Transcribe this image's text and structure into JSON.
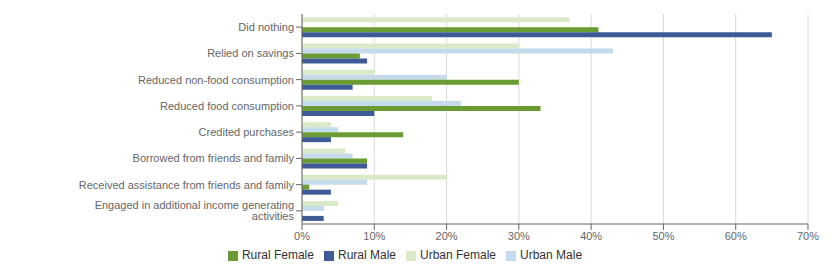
{
  "chart_data": {
    "type": "bar",
    "orientation": "horizontal",
    "categories": [
      "Did nothing",
      "Relied on savings",
      "Reduced non-food consumption",
      "Reduced food consumption",
      "Credited purchases",
      "Borrowed from friends and family",
      "Received assistance from friends and family",
      "Engaged in additional income generating activities"
    ],
    "series": [
      {
        "name": "Urban Female",
        "color": "#daeac8",
        "values": [
          0.37,
          0.3,
          0.1,
          0.18,
          0.04,
          0.06,
          0.2,
          0.05
        ]
      },
      {
        "name": "Urban Male",
        "color": "#c5daea",
        "values": [
          0.0,
          0.43,
          0.2,
          0.22,
          0.05,
          0.07,
          0.09,
          0.03
        ]
      },
      {
        "name": "Rural Female",
        "color": "#6b9b33",
        "values": [
          0.41,
          0.08,
          0.3,
          0.33,
          0.14,
          0.09,
          0.01,
          0.0
        ]
      },
      {
        "name": "Rural Male",
        "color": "#3d5a96",
        "values": [
          0.65,
          0.09,
          0.07,
          0.1,
          0.04,
          0.09,
          0.04,
          0.03
        ]
      }
    ],
    "xlim": [
      0,
      0.7
    ],
    "xticks": [
      {
        "value": 0.0,
        "label": "0%"
      },
      {
        "value": 0.1,
        "label": "10%"
      },
      {
        "value": 0.2,
        "label": "20%"
      },
      {
        "value": 0.3,
        "label": "30%"
      },
      {
        "value": 0.4,
        "label": "40%"
      },
      {
        "value": 0.5,
        "label": "50%"
      },
      {
        "value": 0.6,
        "label": "60%"
      },
      {
        "value": 0.7,
        "label": "70%"
      }
    ],
    "grid": true,
    "legend": "bottom"
  }
}
